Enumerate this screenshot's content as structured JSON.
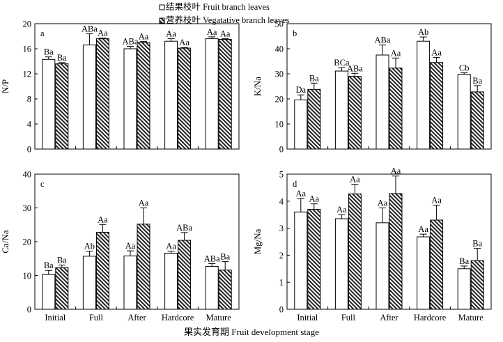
{
  "figure": {
    "legend": {
      "fruit": "结果枝叶 Fruit branch leaves",
      "veg": "营养枝叶 Vegatative branch leaves"
    },
    "x_title": "果实发育期 Fruit development stage"
  },
  "chart_data": [
    {
      "type": "bar",
      "panel": "a",
      "ylabel": "N/P",
      "ylim": [
        0,
        20
      ],
      "yticks": [
        0,
        4,
        8,
        12,
        16,
        20
      ],
      "xticklabels": false,
      "categories": [
        "Initial",
        "Full",
        "After",
        "Hardcore",
        "Mature"
      ],
      "series": [
        {
          "name": "结果枝叶 Fruit branch leaves",
          "pattern": "open",
          "values": [
            14.3,
            16.6,
            16.0,
            17.2,
            17.6
          ],
          "errors": [
            0.4,
            1.8,
            0.4,
            0.4,
            0.3
          ],
          "labels": [
            "Ba",
            "ABa",
            "ABa",
            "Aa",
            "Aa"
          ]
        },
        {
          "name": "营养枝叶 Vegatative branch leaves",
          "pattern": "hatched",
          "values": [
            13.6,
            17.6,
            17.0,
            16.1,
            17.5
          ],
          "errors": [
            0.2,
            0.1,
            0.15,
            0.1,
            0.1
          ],
          "labels": [
            "Ba",
            "Aa",
            "Aa",
            "Aa",
            "Aa"
          ]
        }
      ]
    },
    {
      "type": "bar",
      "panel": "b",
      "ylabel": "K/Na",
      "ylim": [
        0,
        50
      ],
      "yticks": [
        0,
        10,
        20,
        30,
        40,
        50
      ],
      "xticklabels": false,
      "categories": [
        "Initial",
        "Full",
        "After",
        "Hardcore",
        "Mature"
      ],
      "series": [
        {
          "name": "结果枝叶 Fruit branch leaves",
          "pattern": "open",
          "values": [
            19.6,
            31.1,
            37.5,
            43.0,
            29.8
          ],
          "errors": [
            2.0,
            1.4,
            4.0,
            1.7,
            0.6
          ],
          "labels": [
            "Da",
            "BCa",
            "ABa",
            "Ab",
            "Cb"
          ]
        },
        {
          "name": "营养枝叶 Vegatative branch leaves",
          "pattern": "hatched",
          "values": [
            23.8,
            29.0,
            32.3,
            34.5,
            22.8
          ],
          "errors": [
            2.5,
            1.2,
            4.0,
            2.0,
            2.5
          ],
          "labels": [
            "Ba",
            "ABa",
            "Aa",
            "Aa",
            "Ba"
          ]
        }
      ]
    },
    {
      "type": "bar",
      "panel": "c",
      "ylabel": "Ca/Na",
      "ylim": [
        0,
        40
      ],
      "yticks": [
        0,
        10,
        20,
        30,
        40
      ],
      "xticklabels": true,
      "categories": [
        "Initial",
        "Full",
        "After",
        "Hardcore",
        "Mature"
      ],
      "series": [
        {
          "name": "结果枝叶 Fruit branch leaves",
          "pattern": "open",
          "values": [
            10.3,
            15.7,
            15.8,
            16.6,
            12.7
          ],
          "errors": [
            1.2,
            1.5,
            1.5,
            0.6,
            0.8
          ],
          "labels": [
            "Ba",
            "Ab",
            "Aa",
            "Aa",
            "ABa"
          ]
        },
        {
          "name": "营养枝叶 Vegatative branch leaves",
          "pattern": "hatched",
          "values": [
            12.3,
            22.8,
            25.2,
            20.4,
            11.6
          ],
          "errors": [
            0.8,
            2.3,
            4.8,
            2.3,
            2.5
          ],
          "labels": [
            "Ba",
            "Aa",
            "Aa",
            "ABa",
            "Ba"
          ]
        }
      ]
    },
    {
      "type": "bar",
      "panel": "d",
      "ylabel": "Mg/Na",
      "ylim": [
        0,
        5
      ],
      "yticks": [
        0,
        1,
        2,
        3,
        4,
        5
      ],
      "xticklabels": true,
      "categories": [
        "Initial",
        "Full",
        "After",
        "Hardcore",
        "Mature"
      ],
      "series": [
        {
          "name": "结果枝叶 Fruit branch leaves",
          "pattern": "open",
          "values": [
            3.6,
            3.35,
            3.2,
            2.68,
            1.5
          ],
          "errors": [
            0.5,
            0.15,
            0.55,
            0.1,
            0.1
          ],
          "labels": [
            "Aa",
            "Aa",
            "Aa",
            "Aa",
            "Ba"
          ]
        },
        {
          "name": "营养枝叶 Vegatative branch leaves",
          "pattern": "hatched",
          "values": [
            3.7,
            4.27,
            4.28,
            3.3,
            1.8
          ],
          "errors": [
            0.2,
            0.35,
            0.65,
            0.55,
            0.45
          ],
          "labels": [
            "Aa",
            "Aa",
            "Aa",
            "Aa",
            "Ba"
          ]
        }
      ]
    }
  ]
}
